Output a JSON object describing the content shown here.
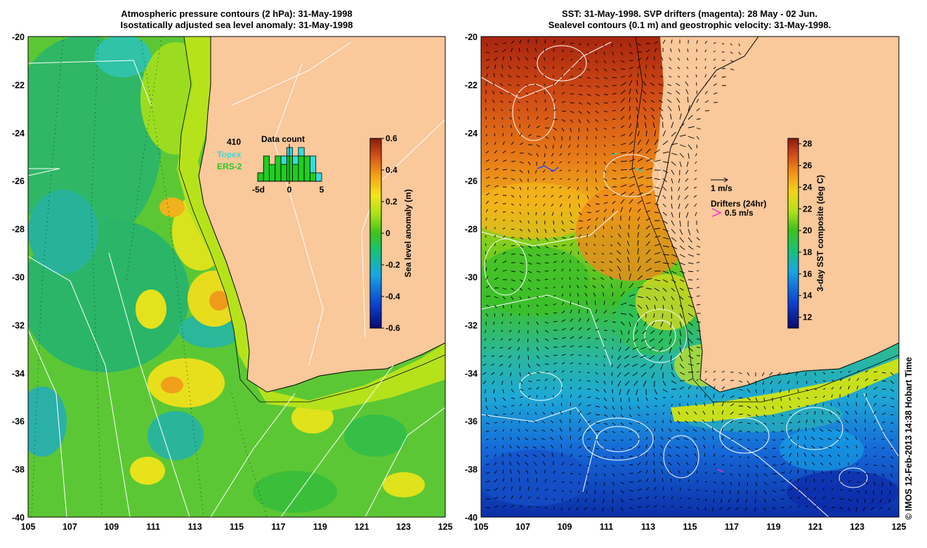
{
  "left_map": {
    "title_line1": "Atmospheric pressure contours (2 hPa): 31-May-1998",
    "title_line2": "Isostatically adjusted sea level anomaly: 31-May-1998",
    "lon_ticks": [
      "105",
      "107",
      "109",
      "111",
      "113",
      "115",
      "117",
      "119",
      "121",
      "123",
      "125"
    ],
    "lat_ticks": [
      "-20",
      "-22",
      "-24",
      "-26",
      "-28",
      "-30",
      "-32",
      "-34",
      "-36",
      "-38",
      "-40"
    ],
    "colorbar": {
      "label": "Sea level anomaly (m)",
      "ticks": [
        "0.6",
        "0.4",
        "0.2",
        "0",
        "-0.2",
        "-0.4",
        "-0.6"
      ],
      "min": -0.6,
      "max": 0.6
    },
    "inset": {
      "title": "Data count",
      "total": "410",
      "series_a_label": "Topex",
      "series_b_label": "ERS-2",
      "x_ticks": [
        "-5d",
        "0",
        "5"
      ],
      "topex_counts": [
        1,
        2,
        1,
        2,
        3,
        4,
        3,
        4,
        2,
        3,
        1
      ],
      "ers_counts": [
        1,
        3,
        2,
        3,
        2,
        3,
        2,
        3,
        3,
        1,
        0
      ]
    }
  },
  "right_map": {
    "title_line1": "SST: 31-May-1998. SVP drifters (magenta): 28 May - 02 Jun.",
    "title_line2": "Sealevel contours (0.1 m) and geostrophic velocity: 31-May-1998.",
    "lon_ticks": [
      "105",
      "107",
      "109",
      "111",
      "113",
      "115",
      "117",
      "119",
      "121",
      "123",
      "125"
    ],
    "lat_ticks": [
      "-20",
      "-22",
      "-24",
      "-26",
      "-28",
      "-30",
      "-32",
      "-34",
      "-36",
      "-38",
      "-40"
    ],
    "colorbar": {
      "label": "3-day SST composite (deg C)",
      "ticks": [
        "28",
        "26",
        "24",
        "22",
        "20",
        "18",
        "16",
        "14",
        "12"
      ],
      "min": 11,
      "max": 28.5
    },
    "vector_legend": "1 m/s",
    "drifter_legend_title": "Drifters (24hr)",
    "drifter_legend_value": "0.5 m/s"
  },
  "credit": "© IMOS 12-Feb-2013 14:38 Hobart Time",
  "colors": {
    "land": "#f9c89b",
    "drifter": "#ff33cc",
    "topex": "#33dddd",
    "ers": "#22cc22"
  }
}
